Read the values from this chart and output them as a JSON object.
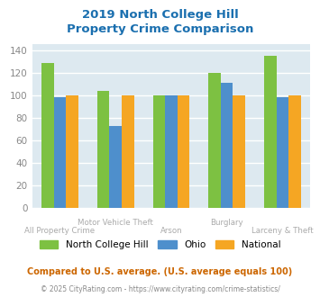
{
  "title": "2019 North College Hill\nProperty Crime Comparison",
  "title_color": "#1a6faf",
  "categories": [
    "All Property Crime",
    "Motor Vehicle Theft",
    "Arson",
    "Burglary",
    "Larceny & Theft"
  ],
  "series": {
    "North College Hill": [
      129,
      104,
      100,
      120,
      135
    ],
    "Ohio": [
      98,
      73,
      100,
      111,
      98
    ],
    "National": [
      100,
      100,
      100,
      100,
      100
    ]
  },
  "colors": {
    "North College Hill": "#7dc142",
    "Ohio": "#4e8fcc",
    "National": "#f5a623"
  },
  "ylim": [
    0,
    145
  ],
  "yticks": [
    0,
    20,
    40,
    60,
    80,
    100,
    120,
    140
  ],
  "background_color": "#dde9f0",
  "grid_color": "#ffffff",
  "bar_width": 0.22,
  "footnote": "Compared to U.S. average. (U.S. average equals 100)",
  "footnote2": "© 2025 CityRating.com - https://www.cityrating.com/crime-statistics/",
  "footnote_color": "#cc6600",
  "footnote2_color": "#888888",
  "label_color": "#aaaaaa"
}
